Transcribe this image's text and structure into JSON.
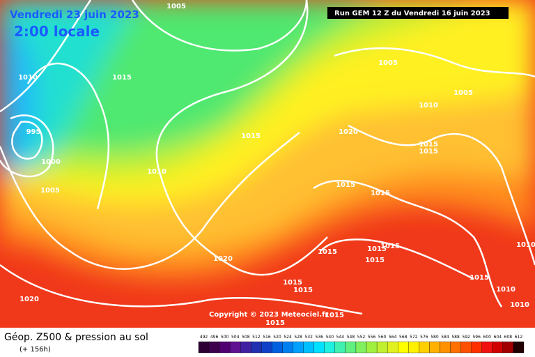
{
  "header": {
    "date": "Vendredi 23 juin 2023",
    "time": "2:00 locale",
    "run": "Run GEM 12 Z du Vendredi 16 juin 2023",
    "copyright": "Copyright © 2023 Meteociel.fr"
  },
  "footer": {
    "title": "Géop. Z500 & pression au sol",
    "lead": "(+ 156h)"
  },
  "isobar_labels": [
    "1005",
    "1010",
    "1015",
    "995",
    "1000",
    "1005",
    "1010",
    "1015",
    "1005",
    "1005",
    "1010",
    "1020",
    "1015",
    "1015",
    "1015",
    "1015",
    "1015",
    "1015",
    "1015",
    "1015",
    "1020",
    "1015",
    "1015",
    "1015",
    "1015",
    "1015",
    "1010",
    "1010",
    "1010",
    "1020"
  ],
  "scale": {
    "labels": [
      "492",
      "496",
      "500",
      "504",
      "508",
      "512",
      "516",
      "520",
      "524",
      "528",
      "532",
      "536",
      "540",
      "544",
      "548",
      "552",
      "556",
      "560",
      "564",
      "568",
      "572",
      "576",
      "580",
      "584",
      "588",
      "592",
      "596",
      "600",
      "604",
      "608",
      "612"
    ],
    "colors": [
      "#2b0033",
      "#3d004d",
      "#500070",
      "#5e1090",
      "#4020a0",
      "#2030b0",
      "#1040c8",
      "#0060e0",
      "#0080f0",
      "#00a0ff",
      "#00c0ff",
      "#00e0ff",
      "#20f0e0",
      "#40f0b0",
      "#60f080",
      "#80f060",
      "#a0f040",
      "#c0f030",
      "#e0f020",
      "#ffff00",
      "#fff000",
      "#ffd000",
      "#ffb000",
      "#ff9000",
      "#ff7000",
      "#ff5000",
      "#ff3000",
      "#f01010",
      "#d00000",
      "#a00000",
      "#200000"
    ]
  }
}
